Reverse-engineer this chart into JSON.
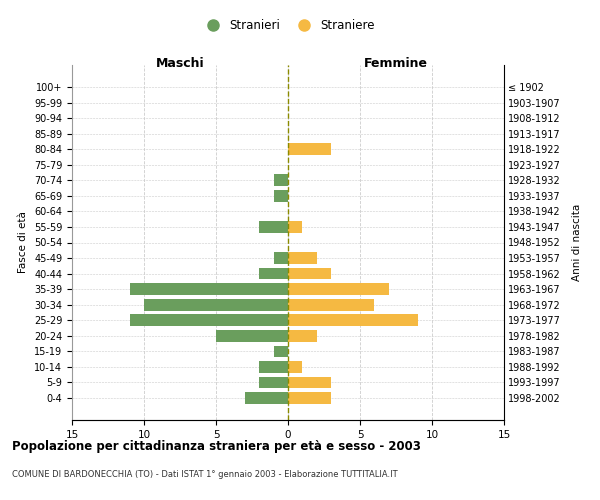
{
  "age_groups": [
    "0-4",
    "5-9",
    "10-14",
    "15-19",
    "20-24",
    "25-29",
    "30-34",
    "35-39",
    "40-44",
    "45-49",
    "50-54",
    "55-59",
    "60-64",
    "65-69",
    "70-74",
    "75-79",
    "80-84",
    "85-89",
    "90-94",
    "95-99",
    "100+"
  ],
  "birth_years": [
    "1998-2002",
    "1993-1997",
    "1988-1992",
    "1983-1987",
    "1978-1982",
    "1973-1977",
    "1968-1972",
    "1963-1967",
    "1958-1962",
    "1953-1957",
    "1948-1952",
    "1943-1947",
    "1938-1942",
    "1933-1937",
    "1928-1932",
    "1923-1927",
    "1918-1922",
    "1913-1917",
    "1908-1912",
    "1903-1907",
    "≤ 1902"
  ],
  "maschi": [
    3,
    2,
    2,
    1,
    5,
    11,
    10,
    11,
    2,
    1,
    0,
    2,
    0,
    1,
    1,
    0,
    0,
    0,
    0,
    0,
    0
  ],
  "femmine": [
    3,
    3,
    1,
    0,
    2,
    9,
    6,
    7,
    3,
    2,
    0,
    1,
    0,
    0,
    0,
    0,
    3,
    0,
    0,
    0,
    0
  ],
  "maschi_color": "#6a9e5d",
  "femmine_color": "#f5b942",
  "title": "Popolazione per cittadinanza straniera per età e sesso - 2003",
  "subtitle": "COMUNE DI BARDONECCHIA (TO) - Dati ISTAT 1° gennaio 2003 - Elaborazione TUTTITALIA.IT",
  "xlabel_left": "Maschi",
  "xlabel_right": "Femmine",
  "ylabel": "Fasce di età",
  "ylabel_right": "Anni di nascita",
  "legend_maschi": "Stranieri",
  "legend_femmine": "Straniere",
  "xlim": 15,
  "background_color": "#ffffff",
  "grid_color": "#cccccc"
}
